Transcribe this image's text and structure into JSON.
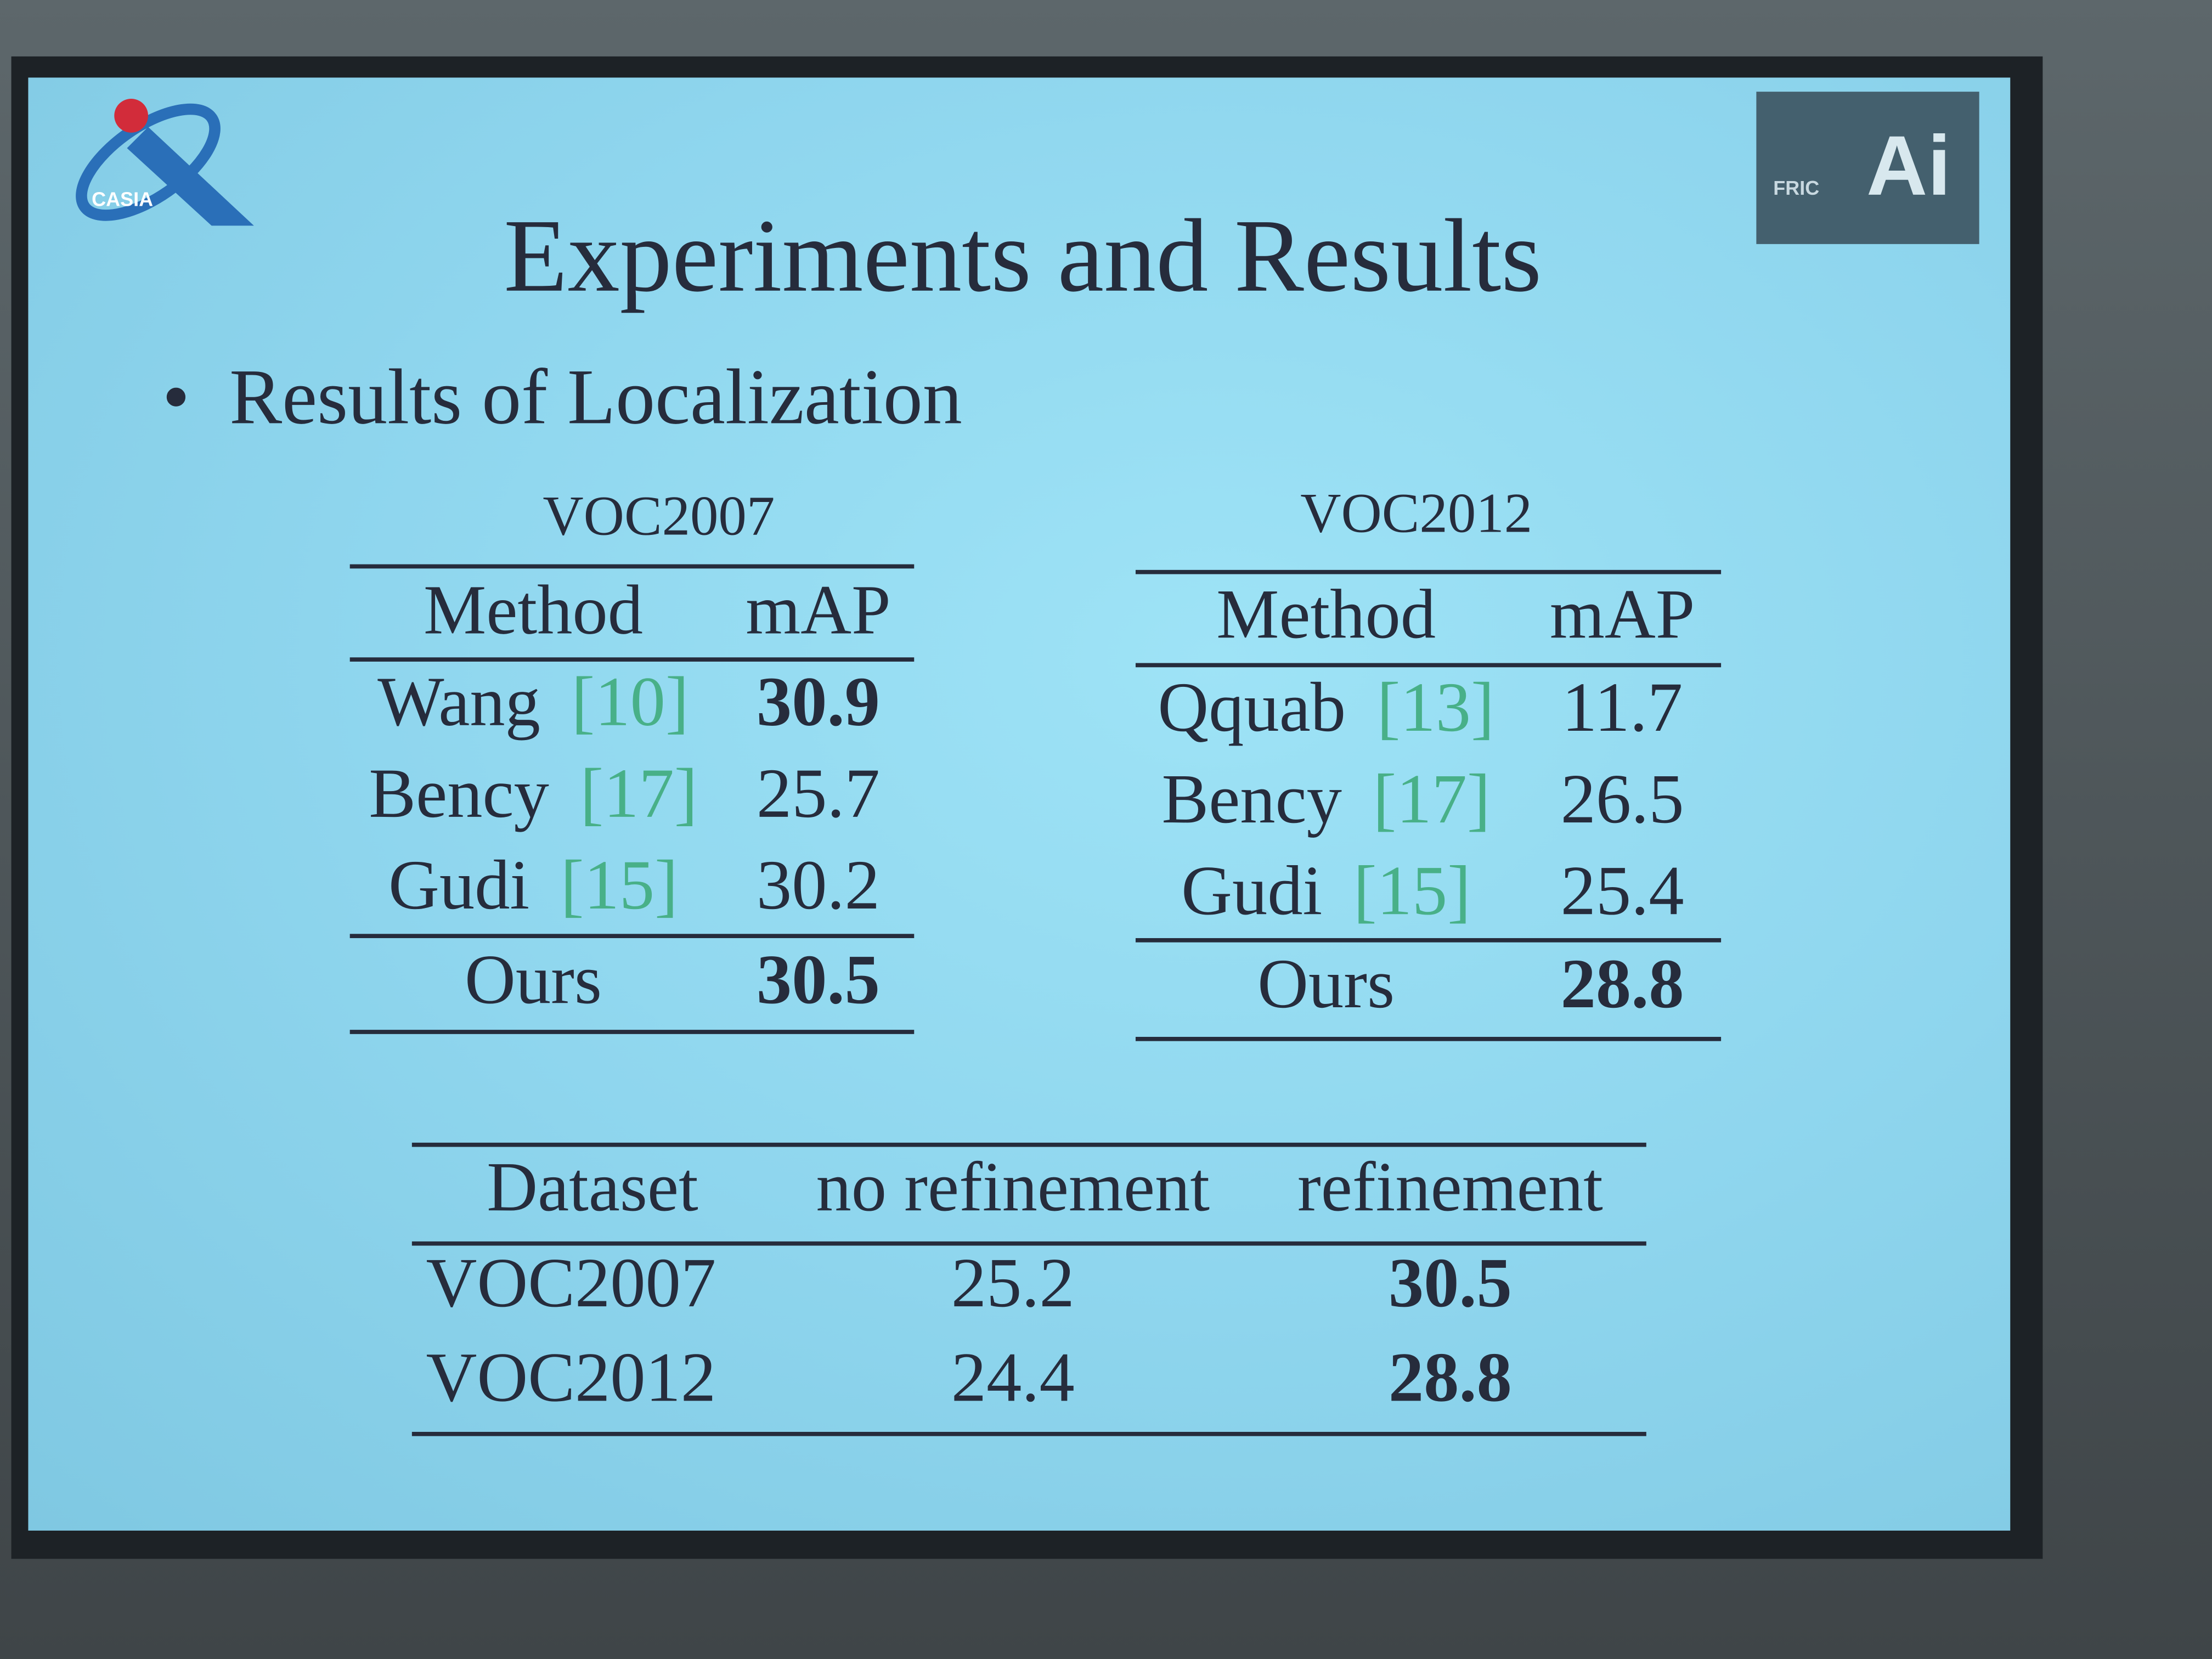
{
  "logos": {
    "casia": "CASIA",
    "fric": "FRIC",
    "ai": "Ai"
  },
  "header": {
    "title": "Experiments and Results"
  },
  "bullet": "Results of Localization",
  "tables": [
    {
      "caption": "VOC2007",
      "header": [
        "Method",
        "mAP"
      ],
      "rows": [
        {
          "method": "Wang",
          "ref": "[10]",
          "map": 30.9,
          "bold": true
        },
        {
          "method": "Bency",
          "ref": "[17]",
          "map": 25.7,
          "bold": false
        },
        {
          "method": "Gudi",
          "ref": "[15]",
          "map": 30.2,
          "bold": false
        },
        {
          "method": "Ours",
          "map": 30.5,
          "bold": true
        }
      ]
    },
    {
      "caption": "VOC2012",
      "header": [
        "Method",
        "mAP"
      ],
      "rows": [
        {
          "method": "Qquab",
          "ref": "[13]",
          "map": 11.7,
          "bold": false
        },
        {
          "method": "Bency",
          "ref": "[17]",
          "map": 26.5,
          "bold": false
        },
        {
          "method": "Gudi",
          "ref": "[15]",
          "map": 25.4,
          "bold": false
        },
        {
          "method": "Ours",
          "map": 28.8,
          "bold": true
        }
      ]
    }
  ],
  "refinement_table": {
    "header": [
      "Dataset",
      "no refinement",
      "refinement"
    ],
    "rows": [
      [
        "VOC2007",
        25.2,
        30.5
      ],
      [
        "VOC2012",
        24.4,
        28.8
      ]
    ]
  }
}
